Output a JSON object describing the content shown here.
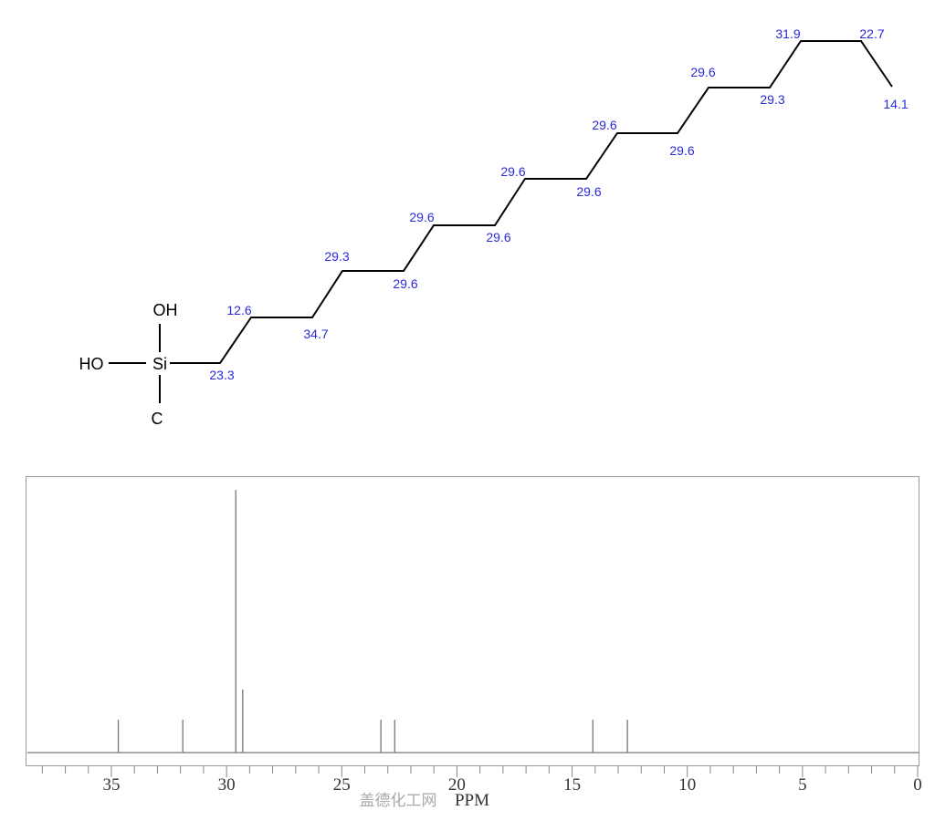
{
  "structure": {
    "atoms": {
      "si": "Si",
      "oh_top": "OH",
      "ho_left": "HO",
      "c_bottom": "C"
    },
    "shift_labels": [
      "23.3",
      "12.6",
      "34.7",
      "29.3",
      "29.6",
      "29.6",
      "29.6",
      "29.6",
      "29.6",
      "29.6",
      "29.6",
      "29.6",
      "29.3",
      "31.9",
      "22.7",
      "14.1"
    ]
  },
  "watermark": "盖德化工网",
  "chart_data": {
    "type": "bar",
    "subtype": "nmr-stick-spectrum",
    "xlabel": "PPM",
    "xlim": [
      38.6,
      0
    ],
    "x_reversed": true,
    "xticks": [
      35,
      30,
      25,
      20,
      15,
      10,
      5,
      0
    ],
    "grid": false,
    "peaks": [
      {
        "ppm": 34.7,
        "intensity": 0.125
      },
      {
        "ppm": 31.9,
        "intensity": 0.125
      },
      {
        "ppm": 29.6,
        "intensity": 1.0
      },
      {
        "ppm": 29.3,
        "intensity": 0.24
      },
      {
        "ppm": 23.3,
        "intensity": 0.125
      },
      {
        "ppm": 22.7,
        "intensity": 0.125
      },
      {
        "ppm": 14.1,
        "intensity": 0.125
      },
      {
        "ppm": 12.6,
        "intensity": 0.125
      }
    ],
    "colors": {
      "peak": "#777777",
      "frame": "#999999",
      "label": "#2a2ad8"
    }
  }
}
